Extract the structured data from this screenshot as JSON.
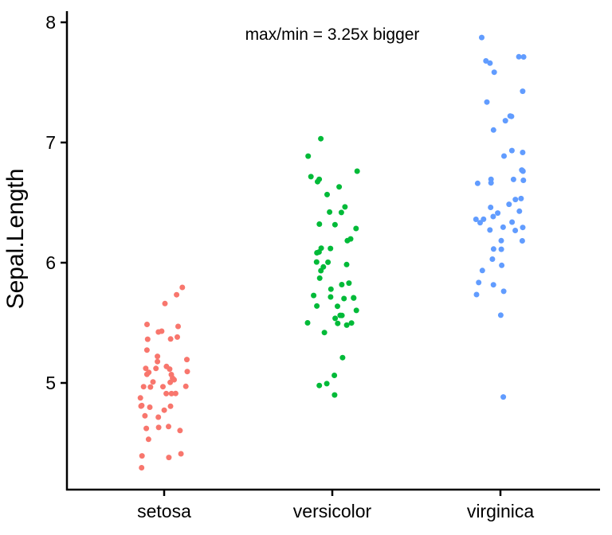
{
  "background": "#FFFFFF",
  "axis_style": {
    "line_color": "#000000",
    "text_color": "#000000"
  },
  "chart_data": {
    "type": "scatter",
    "subtype": "jitter-strip",
    "title": "",
    "xlabel": "",
    "ylabel": "Sepal.Length",
    "categories": [
      "setosa",
      "versicolor",
      "virginica"
    ],
    "y_ticks": [
      5,
      6,
      7,
      8
    ],
    "ylim": [
      4.1,
      8.1
    ],
    "grid": false,
    "legend_position": "none",
    "annotation": {
      "text": "max/min = 3.25x bigger",
      "x_category": "versicolor",
      "y": 7.9
    },
    "point_colors": {
      "setosa": "#F8766D",
      "versicolor": "#00BA38",
      "virginica": "#619CFF"
    },
    "series": [
      {
        "name": "setosa",
        "color": "#F8766D",
        "values": [
          5.1,
          4.9,
          4.7,
          4.6,
          5.0,
          5.4,
          4.6,
          5.0,
          4.4,
          4.9,
          5.4,
          4.8,
          4.8,
          4.3,
          5.8,
          5.7,
          5.4,
          5.1,
          5.7,
          5.1,
          5.4,
          5.1,
          4.6,
          5.1,
          4.8,
          5.0,
          5.0,
          5.2,
          5.2,
          4.7,
          4.8,
          5.4,
          5.2,
          5.5,
          4.9,
          5.0,
          5.5,
          4.9,
          4.4,
          5.1,
          5.0,
          4.5,
          4.4,
          5.0,
          5.1,
          4.8,
          5.1,
          4.6,
          5.3,
          5.0
        ]
      },
      {
        "name": "versicolor",
        "color": "#00BA38",
        "values": [
          7.0,
          6.4,
          6.9,
          5.5,
          6.5,
          5.7,
          6.3,
          4.9,
          6.6,
          5.2,
          5.0,
          5.9,
          6.0,
          6.1,
          5.6,
          6.7,
          5.6,
          5.8,
          6.2,
          5.6,
          5.9,
          6.1,
          6.3,
          6.1,
          6.4,
          6.6,
          6.8,
          6.7,
          6.0,
          5.7,
          5.5,
          5.5,
          5.8,
          6.0,
          5.4,
          6.0,
          6.7,
          6.3,
          5.6,
          5.5,
          5.5,
          6.1,
          5.8,
          5.0,
          5.6,
          5.7,
          5.7,
          6.2,
          5.1,
          5.7
        ]
      },
      {
        "name": "virginica",
        "color": "#619CFF",
        "values": [
          6.3,
          5.8,
          7.1,
          6.3,
          6.5,
          7.6,
          4.9,
          7.3,
          6.7,
          7.2,
          6.5,
          6.4,
          6.8,
          5.7,
          5.8,
          6.4,
          6.5,
          7.7,
          7.7,
          6.0,
          6.9,
          5.6,
          7.7,
          6.3,
          6.7,
          7.2,
          6.2,
          6.1,
          6.4,
          7.2,
          7.4,
          7.9,
          6.4,
          6.3,
          6.1,
          7.7,
          6.3,
          6.4,
          6.0,
          6.9,
          6.7,
          6.9,
          5.8,
          6.8,
          6.7,
          6.7,
          6.3,
          6.5,
          6.2,
          5.9
        ]
      }
    ]
  }
}
